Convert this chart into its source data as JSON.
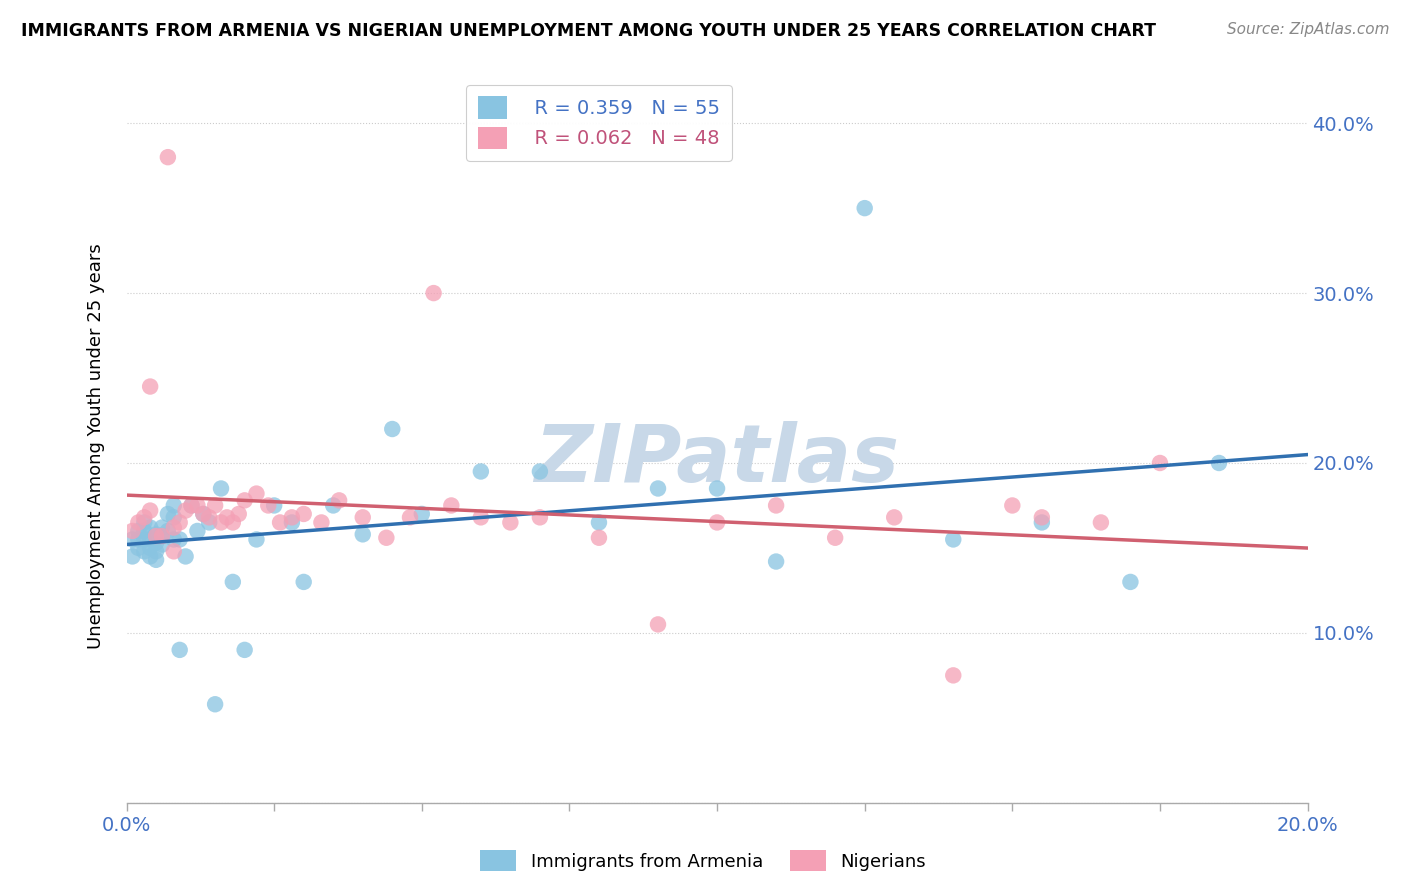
{
  "title": "IMMIGRANTS FROM ARMENIA VS NIGERIAN UNEMPLOYMENT AMONG YOUTH UNDER 25 YEARS CORRELATION CHART",
  "source": "Source: ZipAtlas.com",
  "ylabel": "Unemployment Among Youth under 25 years",
  "xlim": [
    0.0,
    0.2
  ],
  "ylim": [
    0.0,
    0.42
  ],
  "legend_r1": "R = 0.359",
  "legend_n1": "N = 55",
  "legend_r2": "R = 0.062",
  "legend_n2": "N = 48",
  "color_blue": "#89c4e1",
  "color_pink": "#f4a0b5",
  "line_color_blue": "#3070b0",
  "line_color_pink": "#d06070",
  "watermark": "ZIPatlas",
  "watermark_color": "#c8d8e8",
  "blue_x": [
    0.001,
    0.001,
    0.002,
    0.002,
    0.002,
    0.003,
    0.003,
    0.003,
    0.003,
    0.004,
    0.004,
    0.004,
    0.004,
    0.005,
    0.005,
    0.005,
    0.005,
    0.006,
    0.006,
    0.006,
    0.007,
    0.007,
    0.008,
    0.008,
    0.008,
    0.009,
    0.009,
    0.01,
    0.011,
    0.012,
    0.013,
    0.014,
    0.015,
    0.016,
    0.018,
    0.02,
    0.022,
    0.025,
    0.028,
    0.03,
    0.035,
    0.04,
    0.045,
    0.05,
    0.06,
    0.07,
    0.08,
    0.09,
    0.1,
    0.11,
    0.125,
    0.14,
    0.155,
    0.17,
    0.185
  ],
  "blue_y": [
    0.155,
    0.145,
    0.16,
    0.155,
    0.15,
    0.165,
    0.16,
    0.155,
    0.148,
    0.162,
    0.155,
    0.15,
    0.145,
    0.158,
    0.153,
    0.148,
    0.143,
    0.162,
    0.157,
    0.152,
    0.17,
    0.16,
    0.175,
    0.168,
    0.155,
    0.09,
    0.155,
    0.145,
    0.175,
    0.16,
    0.17,
    0.165,
    0.058,
    0.185,
    0.13,
    0.09,
    0.155,
    0.175,
    0.165,
    0.13,
    0.175,
    0.158,
    0.22,
    0.17,
    0.195,
    0.195,
    0.165,
    0.185,
    0.185,
    0.142,
    0.35,
    0.155,
    0.165,
    0.13,
    0.2
  ],
  "pink_x": [
    0.001,
    0.002,
    0.003,
    0.004,
    0.004,
    0.005,
    0.006,
    0.007,
    0.008,
    0.008,
    0.009,
    0.01,
    0.011,
    0.012,
    0.013,
    0.014,
    0.015,
    0.016,
    0.017,
    0.018,
    0.019,
    0.02,
    0.022,
    0.024,
    0.026,
    0.028,
    0.03,
    0.033,
    0.036,
    0.04,
    0.044,
    0.048,
    0.052,
    0.055,
    0.06,
    0.065,
    0.07,
    0.08,
    0.09,
    0.1,
    0.11,
    0.12,
    0.13,
    0.14,
    0.15,
    0.155,
    0.165,
    0.175
  ],
  "pink_y": [
    0.16,
    0.165,
    0.168,
    0.172,
    0.245,
    0.157,
    0.157,
    0.38,
    0.148,
    0.162,
    0.165,
    0.172,
    0.175,
    0.175,
    0.17,
    0.168,
    0.175,
    0.165,
    0.168,
    0.165,
    0.17,
    0.178,
    0.182,
    0.175,
    0.165,
    0.168,
    0.17,
    0.165,
    0.178,
    0.168,
    0.156,
    0.168,
    0.3,
    0.175,
    0.168,
    0.165,
    0.168,
    0.156,
    0.105,
    0.165,
    0.175,
    0.156,
    0.168,
    0.075,
    0.175,
    0.168,
    0.165,
    0.2
  ]
}
